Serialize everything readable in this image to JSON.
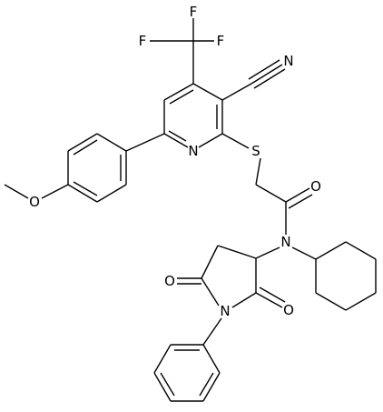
{
  "atoms": [
    "F",
    "F",
    "F",
    "N",
    "N",
    "S",
    "O",
    "N",
    "O",
    "O",
    "O",
    "N"
  ]
}
